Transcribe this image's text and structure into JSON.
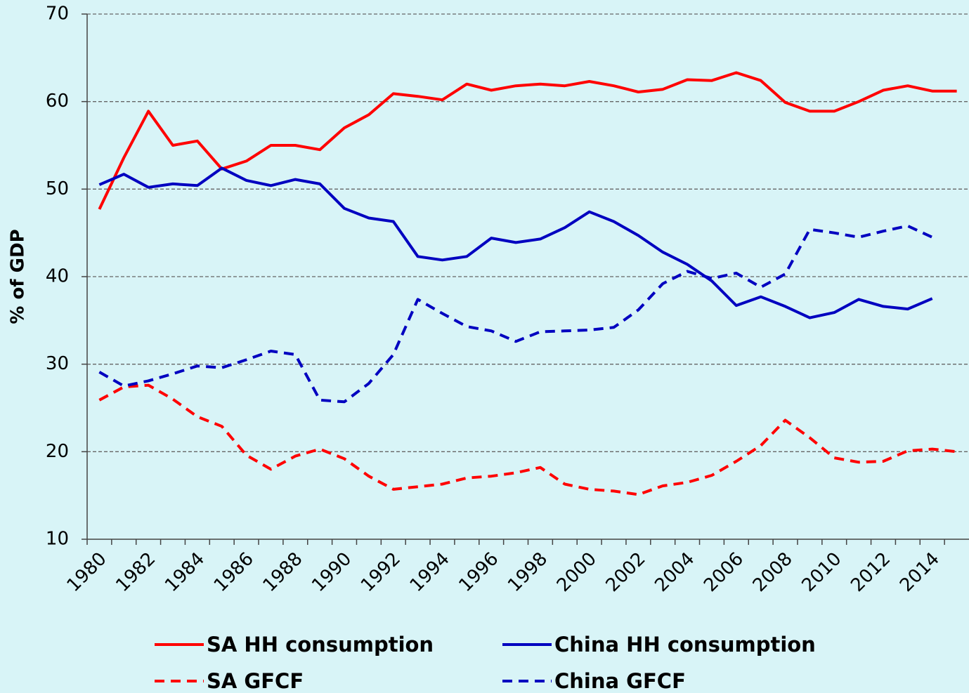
{
  "chart_data": {
    "type": "line",
    "y_label": "% of GDP",
    "categories": [
      "1980",
      null,
      "1982",
      null,
      "1984",
      null,
      "1986",
      null,
      "1988",
      null,
      "1990",
      null,
      "1992",
      null,
      "1994",
      null,
      "1996",
      null,
      "1998",
      null,
      "2000",
      null,
      "2002",
      null,
      "2004",
      null,
      "2006",
      null,
      "2008",
      null,
      "2010",
      null,
      "2012",
      null,
      "2014",
      null
    ],
    "series": [
      {
        "name": "SA HH consumption",
        "color": "#ff0000",
        "dashed": false,
        "values": [
          47.7,
          53.6,
          58.9,
          55.0,
          55.5,
          52.3,
          53.2,
          55.0,
          55.0,
          54.5,
          57.0,
          58.5,
          60.9,
          60.6,
          60.2,
          62.0,
          61.3,
          61.8,
          62.0,
          61.8,
          62.3,
          61.8,
          61.1,
          61.4,
          62.5,
          62.4,
          63.3,
          62.4,
          59.9,
          58.9,
          58.9,
          60.0,
          61.3,
          61.8,
          61.2,
          61.2
        ]
      },
      {
        "name": "China HH consumption",
        "color": "#0000c0",
        "dashed": false,
        "values": [
          50.5,
          51.7,
          50.2,
          50.6,
          50.4,
          52.4,
          51.0,
          50.4,
          51.1,
          50.6,
          47.8,
          46.7,
          46.3,
          42.3,
          41.9,
          42.3,
          44.4,
          43.9,
          44.3,
          45.6,
          47.4,
          46.3,
          44.7,
          42.8,
          41.4,
          39.5,
          36.7,
          37.7,
          36.6,
          35.3,
          35.9,
          37.4,
          36.6,
          36.3,
          37.5,
          null
        ]
      },
      {
        "name": "SA GFCF",
        "color": "#ff0000",
        "dashed": true,
        "values": [
          25.9,
          27.4,
          27.6,
          26.0,
          24.0,
          22.9,
          19.6,
          18.0,
          19.5,
          20.3,
          19.2,
          17.2,
          15.7,
          16.0,
          16.3,
          17.0,
          17.2,
          17.6,
          18.2,
          16.3,
          15.7,
          15.5,
          15.1,
          16.1,
          16.5,
          17.3,
          18.9,
          20.7,
          23.6,
          21.6,
          19.3,
          18.8,
          18.9,
          20.1,
          20.3,
          20.0
        ]
      },
      {
        "name": "China GFCF",
        "color": "#0000c0",
        "dashed": true,
        "values": [
          29.1,
          27.5,
          28.1,
          28.9,
          29.8,
          29.6,
          30.5,
          31.5,
          31.1,
          25.9,
          25.7,
          27.8,
          31.1,
          37.4,
          35.8,
          34.3,
          33.8,
          32.6,
          33.7,
          33.8,
          33.9,
          34.2,
          36.2,
          39.2,
          40.6,
          39.8,
          40.4,
          38.8,
          40.3,
          45.4,
          45.0,
          44.5,
          45.2,
          45.8,
          44.5,
          null
        ]
      }
    ],
    "ylim": [
      10,
      70
    ],
    "yticks": [
      10,
      20,
      30,
      40,
      50,
      60,
      70
    ],
    "grid": true
  }
}
